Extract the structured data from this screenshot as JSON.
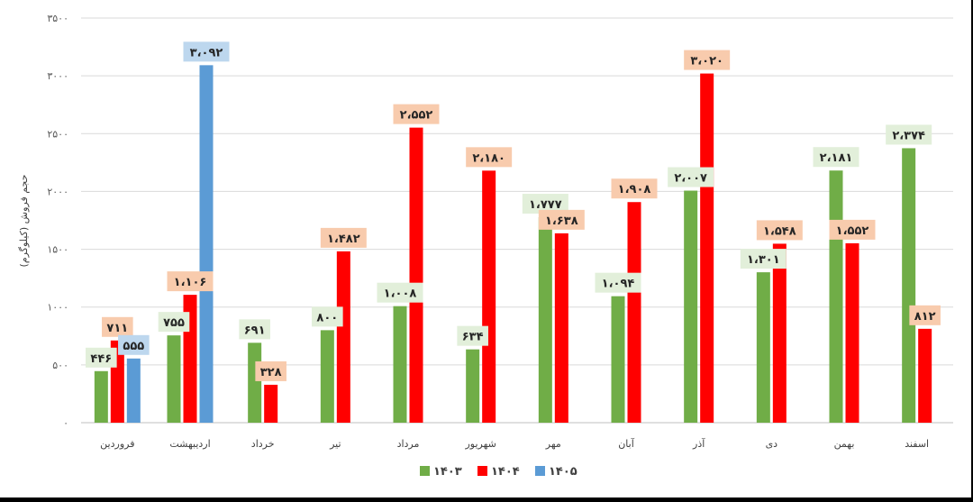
{
  "chart_data": {
    "type": "bar",
    "ylabel": "حجم فروش (کیلوگرم)",
    "ylim": [
      0,
      3500
    ],
    "yticks": [
      "۰",
      "۵۰۰",
      "۱۰۰۰",
      "۱۵۰۰",
      "۲۰۰۰",
      "۲۵۰۰",
      "۳۰۰۰",
      "۳۵۰۰"
    ],
    "categories": [
      "فروردین",
      "اردیبهشت",
      "خرداد",
      "تیر",
      "مرداد",
      "شهریور",
      "مهر",
      "آبان",
      "آذر",
      "دی",
      "بهمن",
      "اسفند"
    ],
    "series": [
      {
        "name": "۱۴۰۳",
        "color": "#70ad47",
        "label_bg": "#e2efda",
        "values": [
          446,
          755,
          691,
          800,
          1008,
          634,
          1777,
          1094,
          2007,
          1301,
          2181,
          2374
        ],
        "labels": [
          "۴۴۶",
          "۷۵۵",
          "۶۹۱",
          "۸۰۰",
          "۱،۰۰۸",
          "۶۳۴",
          "۱،۷۷۷",
          "۱،۰۹۴",
          "۲،۰۰۷",
          "۱،۳۰۱",
          "۲،۱۸۱",
          "۲،۳۷۴"
        ]
      },
      {
        "name": "۱۴۰۴",
        "color": "#ff0000",
        "label_bg": "#f8cbad",
        "values": [
          711,
          1106,
          328,
          1482,
          2552,
          2180,
          1638,
          1908,
          3020,
          1548,
          1552,
          812
        ],
        "labels": [
          "۷۱۱",
          "۱،۱۰۶",
          "۳۲۸",
          "۱،۴۸۲",
          "۲،۵۵۲",
          "۲،۱۸۰",
          "۱،۶۳۸",
          "۱،۹۰۸",
          "۳،۰۲۰",
          "۱،۵۴۸",
          "۱،۵۵۲",
          "۸۱۲"
        ]
      },
      {
        "name": "۱۴۰۵",
        "color": "#5b9bd5",
        "label_bg": "#bdd7ee",
        "values": [
          555,
          3092,
          null,
          null,
          null,
          null,
          null,
          null,
          null,
          null,
          null,
          null
        ],
        "labels": [
          "۵۵۵",
          "۳،۰۹۲",
          "",
          "",
          "",
          "",
          "",
          "",
          "",
          "",
          "",
          ""
        ]
      }
    ],
    "grid": true,
    "legend": "bottom-center"
  }
}
